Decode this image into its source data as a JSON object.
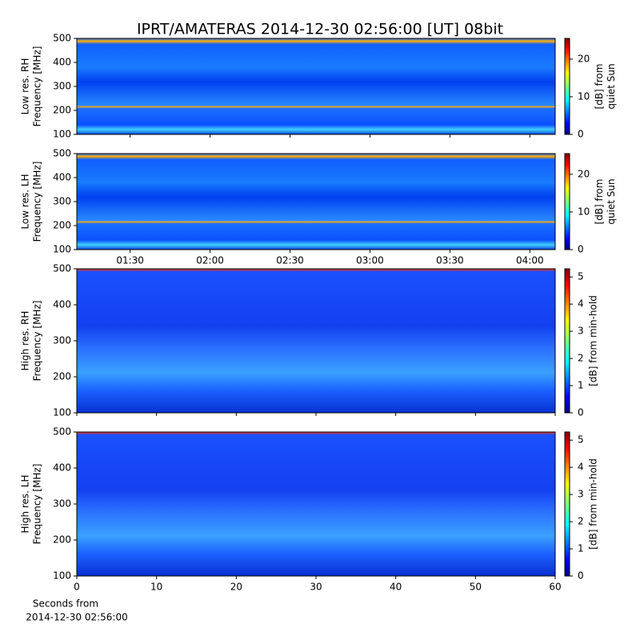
{
  "chart_data": [
    {
      "type": "heatmap",
      "title": "IPRT/AMATERAS 2014-12-30 02:56:00 [UT]   08bit",
      "ylabel": [
        "Low res. RH",
        "Frequency [MHz]"
      ],
      "ylim": [
        100,
        500
      ],
      "yticks": [
        100,
        200,
        300,
        400,
        500
      ],
      "xlim": [
        70,
        249.5
      ],
      "clabel": [
        "[dB] from",
        "quiet Sun"
      ],
      "clim": [
        0,
        25.5
      ],
      "cticks": [
        0,
        10,
        20
      ],
      "colormap": "jet"
    },
    {
      "type": "heatmap",
      "ylabel": [
        "Low res. LH",
        "Frequency [MHz]"
      ],
      "ylim": [
        100,
        500
      ],
      "yticks": [
        100,
        200,
        300,
        400,
        500
      ],
      "xlim": [
        70,
        249.5
      ],
      "xticks": [
        {
          "value": 90,
          "label": "01:30"
        },
        {
          "value": 120,
          "label": "02:00"
        },
        {
          "value": 150,
          "label": "02:30"
        },
        {
          "value": 180,
          "label": "03:00"
        },
        {
          "value": 210,
          "label": "03:30"
        },
        {
          "value": 240,
          "label": "04:00"
        }
      ],
      "clabel": [
        "[dB] from",
        "quiet Sun"
      ],
      "clim": [
        0,
        25.5
      ],
      "cticks": [
        0,
        10,
        20
      ],
      "colormap": "jet"
    },
    {
      "type": "heatmap",
      "ylabel": [
        "High res. RH",
        "Frequency [MHz]"
      ],
      "ylim": [
        100,
        500
      ],
      "yticks": [
        100,
        200,
        300,
        400,
        500
      ],
      "xlim": [
        0,
        60
      ],
      "clabel": [
        "[dB] from min-hold"
      ],
      "clim": [
        0,
        5.3
      ],
      "cticks": [
        0,
        1,
        2,
        3,
        4,
        5
      ],
      "colormap": "jet"
    },
    {
      "type": "heatmap",
      "ylabel": [
        "High res. LH",
        "Frequency [MHz]"
      ],
      "ylim": [
        100,
        500
      ],
      "yticks": [
        100,
        200,
        300,
        400,
        500
      ],
      "xlim": [
        0,
        60
      ],
      "xticks": [
        0,
        10,
        20,
        30,
        40,
        50,
        60
      ],
      "xlabel": [
        "Seconds from",
        "2014-12-30 02:56:00"
      ],
      "clabel": [
        "[dB] from min-hold"
      ],
      "clim": [
        0,
        5.3
      ],
      "cticks": [
        0,
        1,
        2,
        3,
        4,
        5
      ],
      "colormap": "jet"
    }
  ]
}
